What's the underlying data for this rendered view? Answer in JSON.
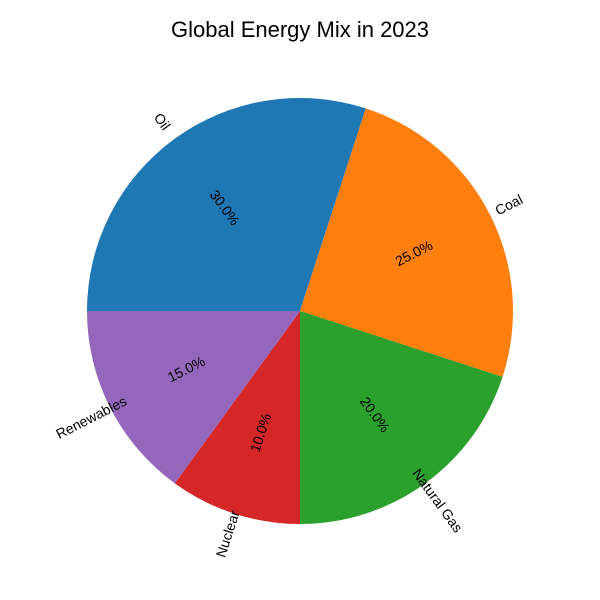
{
  "chart_data": {
    "type": "pie",
    "title": "Global Energy Mix in 2023",
    "labels": [
      "Oil",
      "Coal",
      "Natural Gas",
      "Nuclear",
      "Renewables"
    ],
    "values": [
      30.0,
      25.0,
      20.0,
      10.0,
      15.0
    ],
    "percent_labels": [
      "30.0%",
      "25.0%",
      "20.0%",
      "10.0%",
      "15.0%"
    ],
    "colors": [
      "#1f77b4",
      "#ff7f0e",
      "#2ca02c",
      "#d62728",
      "#9467bd"
    ],
    "start_angle_deg": 180,
    "direction": "clockwise",
    "rotate_labels": true
  }
}
